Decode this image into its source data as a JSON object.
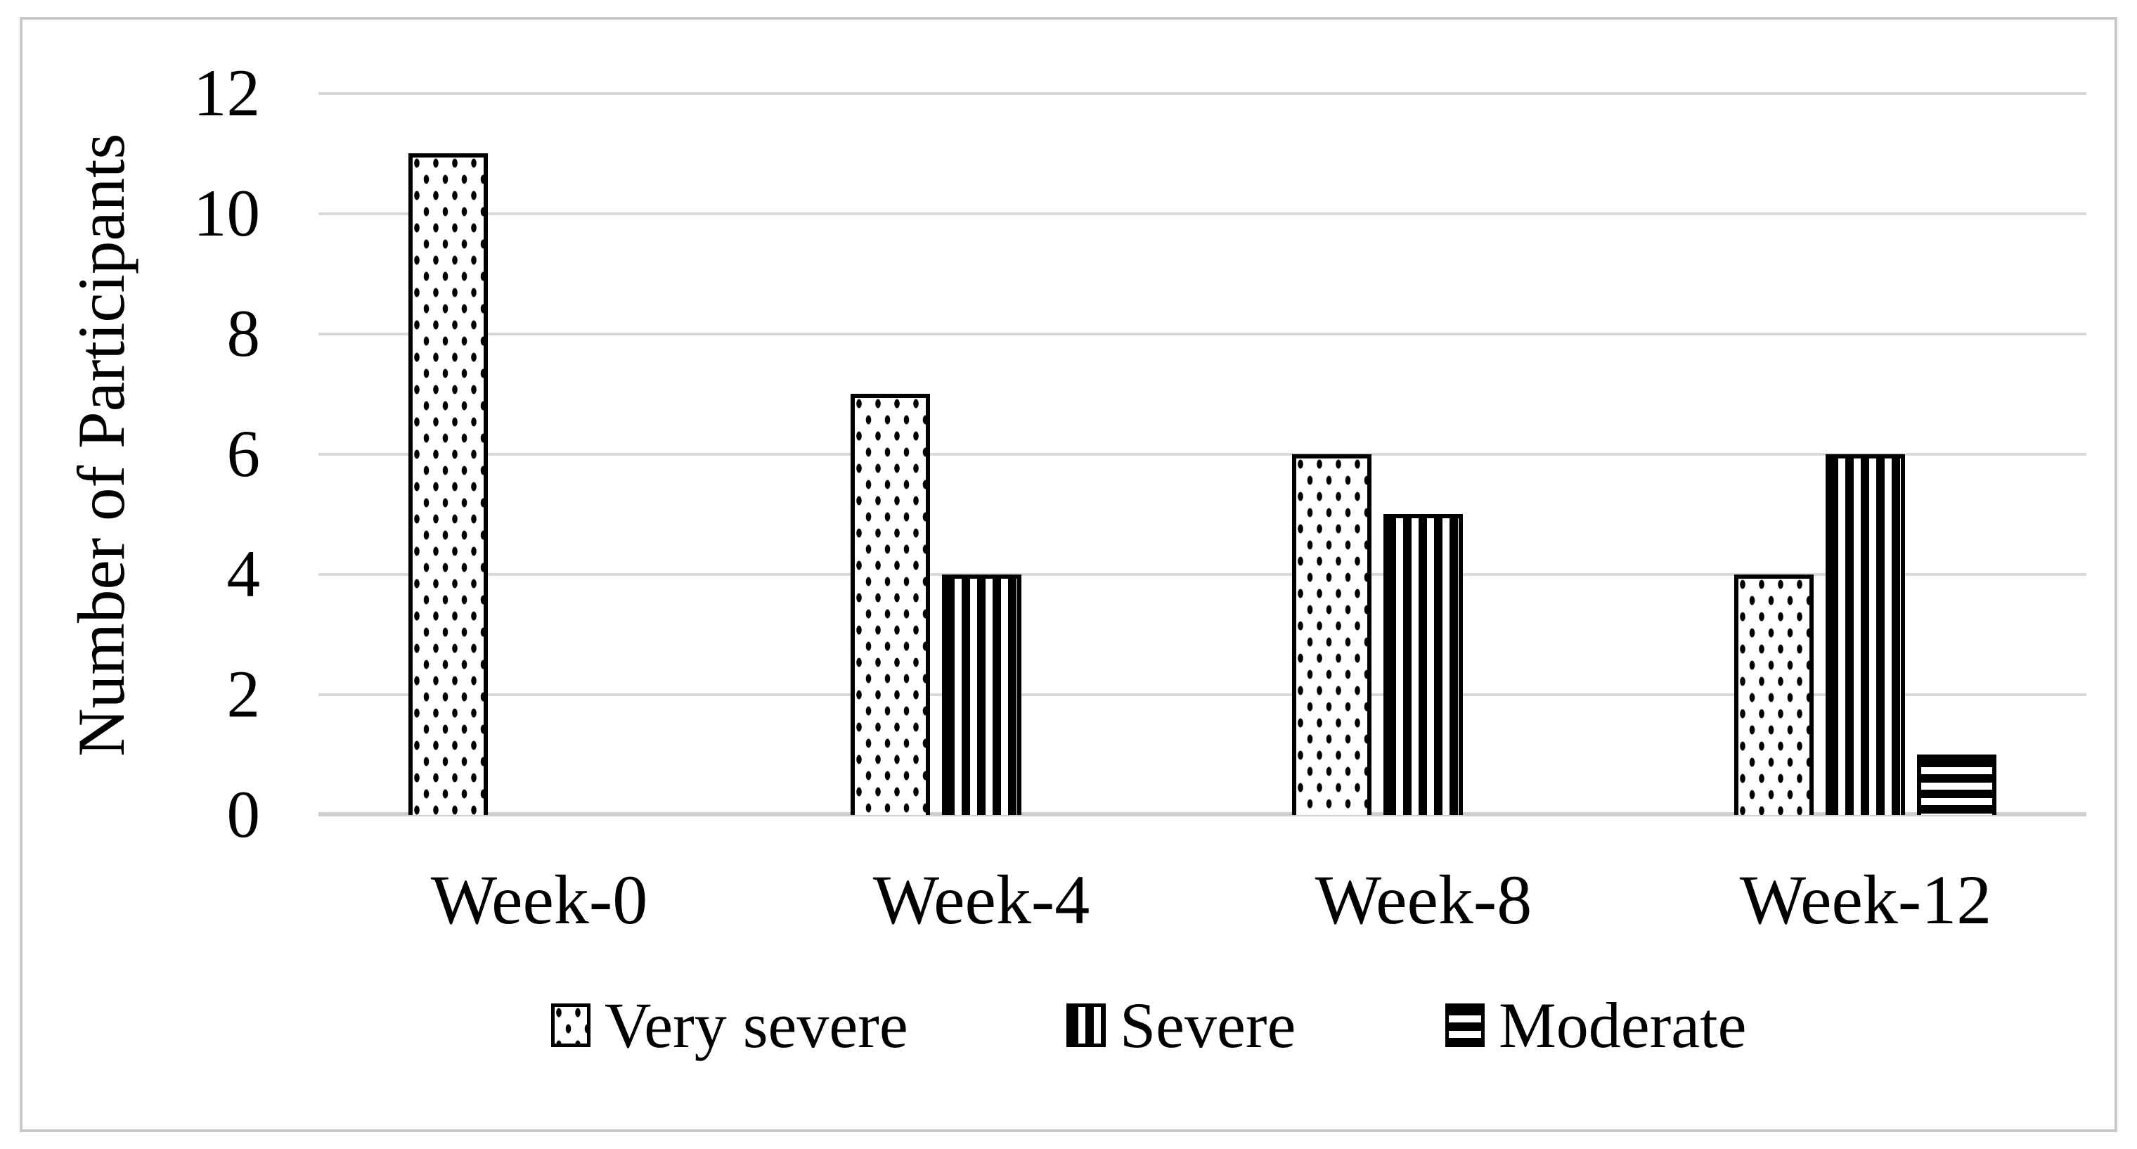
{
  "figure": {
    "background_color": "#ffffff",
    "frame_border_color": "#c9c9c9"
  },
  "chart_data": {
    "type": "bar",
    "title": "",
    "categories": [
      "Week-0",
      "Week-4",
      "Week-8",
      "Week-12"
    ],
    "series": [
      {
        "name": "Very severe",
        "pattern": "dots",
        "values": [
          11,
          7,
          6,
          4
        ]
      },
      {
        "name": "Severe",
        "pattern": "vertical-stripes",
        "values": [
          0,
          4,
          5,
          6
        ]
      },
      {
        "name": "Moderate",
        "pattern": "horizontal-stripes",
        "values": [
          0,
          0,
          0,
          1
        ]
      }
    ],
    "xlabel": "",
    "ylabel": "Number of Participants",
    "ylim": [
      0,
      12
    ],
    "yticks": [
      0,
      2,
      4,
      6,
      8,
      10,
      12
    ],
    "grid": true,
    "gridline_color": "#d9d9d9",
    "bar_fill": "#ffffff",
    "bar_stroke": "#000000",
    "legend_position": "bottom"
  }
}
